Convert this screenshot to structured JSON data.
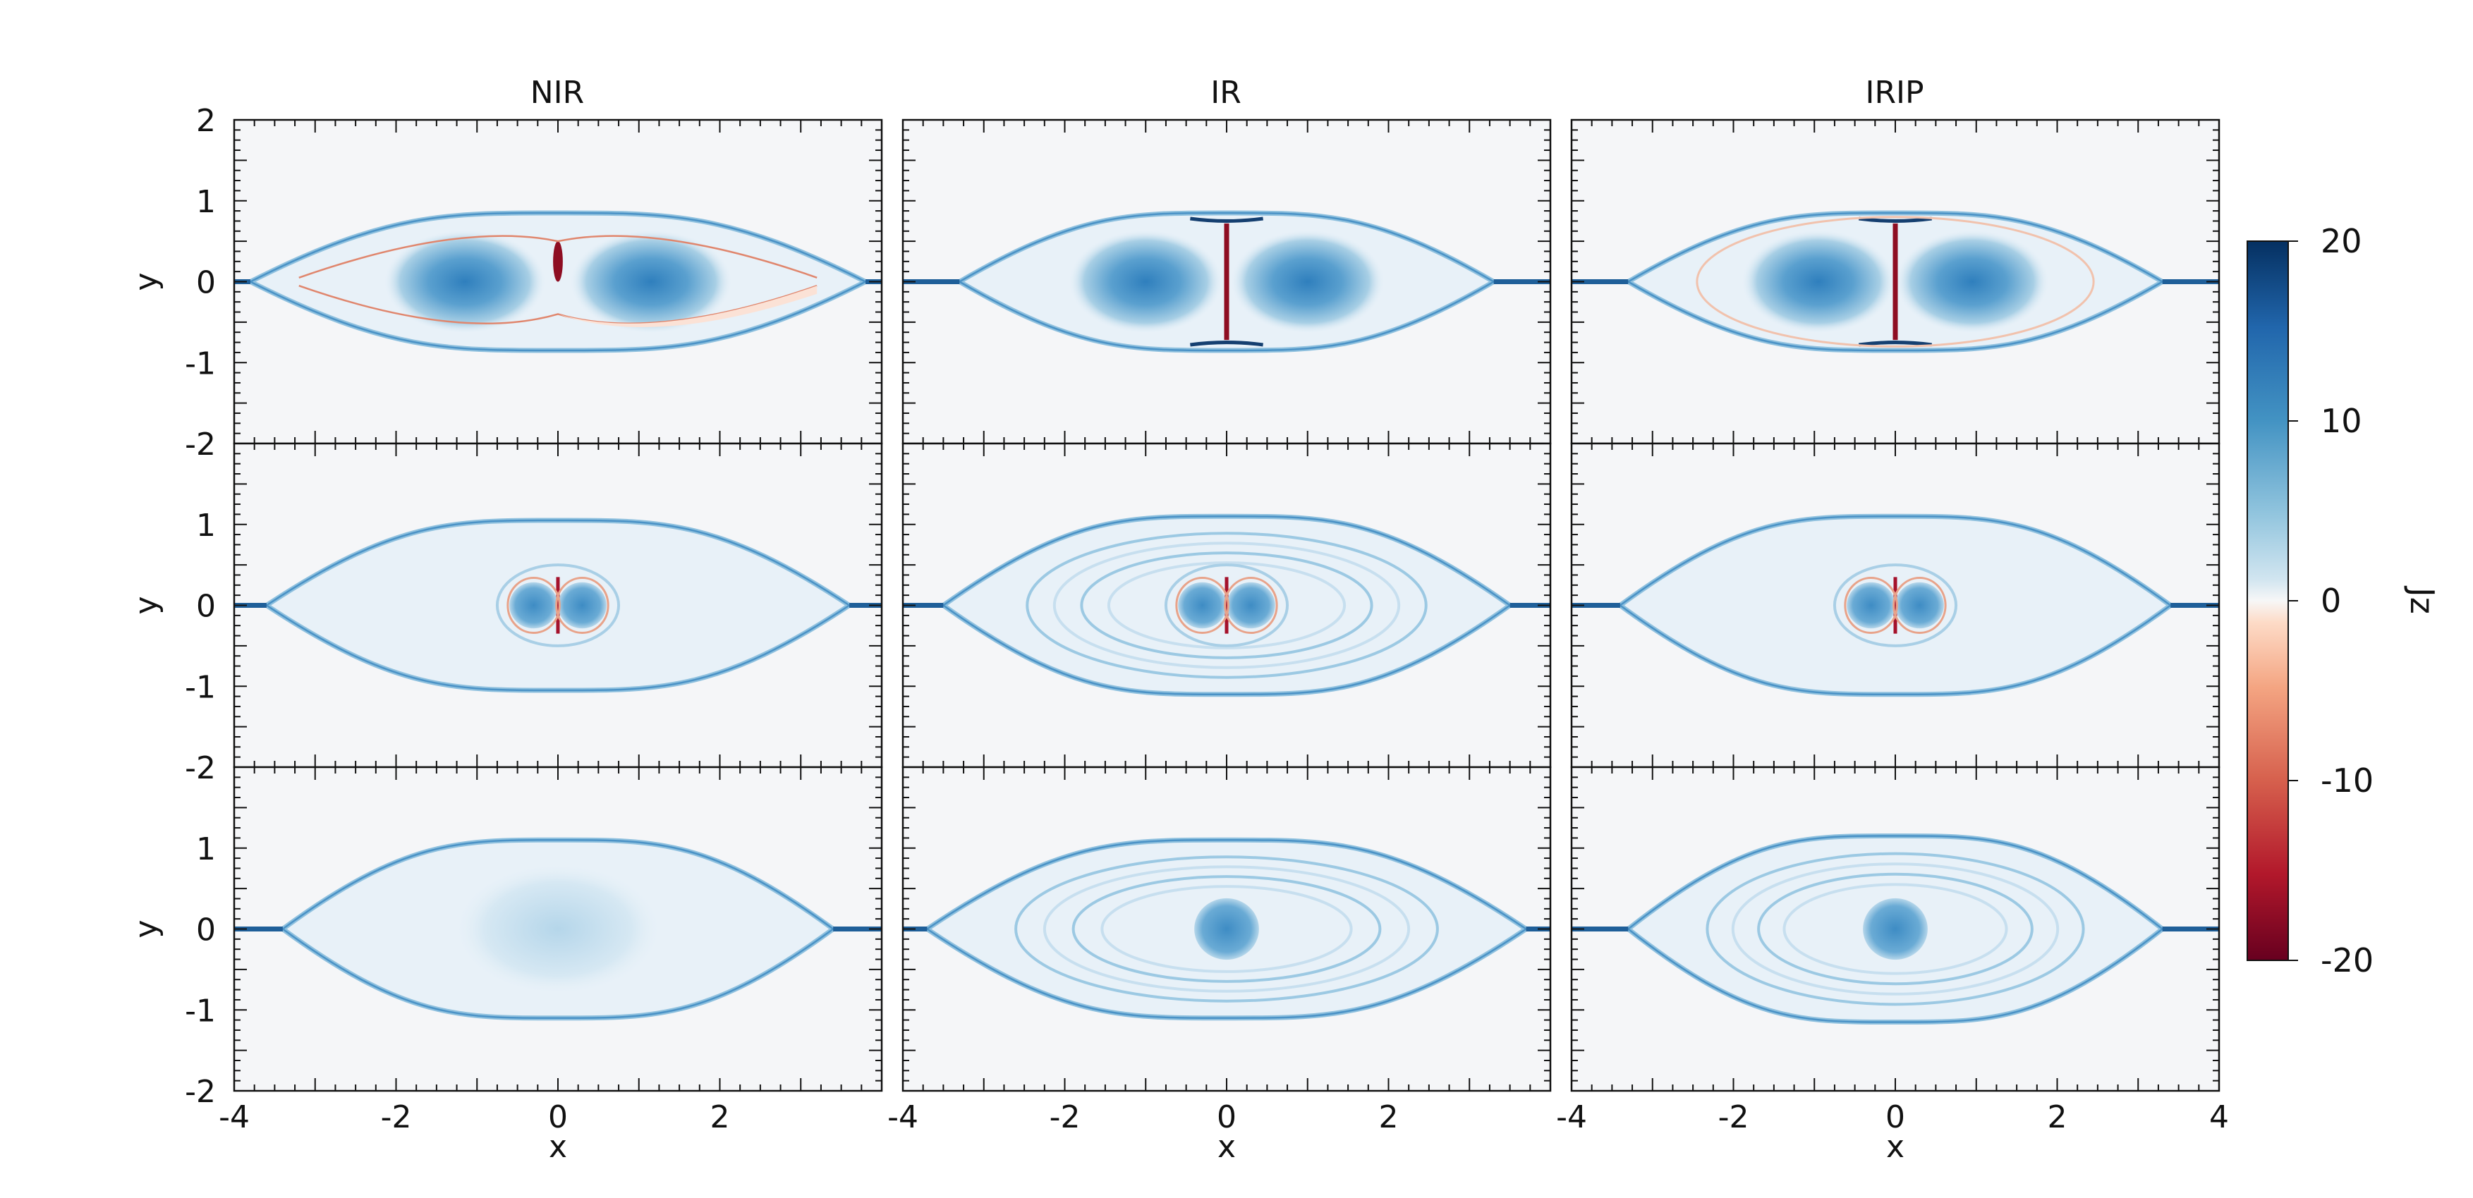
{
  "figure": {
    "columns": [
      "NIR",
      "IR",
      "IRIP"
    ],
    "xlabel": "x",
    "ylabel": "y",
    "x_ticks": [
      "-4",
      "-2",
      "0",
      "2"
    ],
    "x_ticks_last": [
      "-4",
      "-2",
      "0",
      "2",
      "4"
    ],
    "y_ticks": [
      "2",
      "1",
      "0",
      "-1",
      "-2"
    ],
    "y_ticks_inner": [
      "1",
      "0",
      "-1",
      "-2"
    ]
  },
  "colorbar": {
    "label": "Jz",
    "ticks": [
      "20",
      "10",
      "0",
      "-10",
      "-20"
    ],
    "colors": {
      "max": "#053061",
      "mid_high": "#4393c3",
      "zero": "#f7f7f7",
      "mid_low": "#f4a582",
      "min": "#67001f"
    }
  },
  "chart_data": {
    "type": "heatmap",
    "layout": "3x3 panel grid",
    "columns": [
      "NIR",
      "IR",
      "IRIP"
    ],
    "xlabel": "x",
    "ylabel": "y",
    "xlim": [
      -4,
      4
    ],
    "ylim": [
      -2,
      2
    ],
    "colorbar": {
      "label": "Jz",
      "range": [
        -20,
        20
      ],
      "ticks": [
        20,
        10,
        0,
        -10,
        -20
      ],
      "colormap": "RdBu (blue positive, red negative)"
    },
    "panels": [
      {
        "row": 0,
        "col": "NIR",
        "island_half_height": 0.85,
        "x_points": [
          -3.8,
          3.8
        ],
        "cores": [
          {
            "x": -1.15,
            "y": 0
          },
          {
            "x": 1.15,
            "y": 0
          }
        ],
        "core_rx": 1.0,
        "central_sheet": "short negative sheet near x=0"
      },
      {
        "row": 0,
        "col": "IR",
        "island_half_height": 0.85,
        "x_points": [
          -3.3,
          3.3
        ],
        "cores": [
          {
            "x": -1.0,
            "y": 0
          },
          {
            "x": 1.0,
            "y": 0
          }
        ],
        "core_rx": 0.95,
        "central_sheet": "negative sheet spanning y=-0.7 to 0.7"
      },
      {
        "row": 0,
        "col": "IRIP",
        "island_half_height": 0.85,
        "x_points": [
          -3.3,
          3.3
        ],
        "cores": [
          {
            "x": -0.95,
            "y": 0
          },
          {
            "x": 0.95,
            "y": 0
          }
        ],
        "core_rx": 0.95,
        "central_sheet": "negative sheet spanning y=-0.7 to 0.7"
      },
      {
        "row": 1,
        "col": "NIR",
        "island_half_height": 1.05,
        "x_points": [
          -3.6,
          3.6
        ],
        "cores": [
          {
            "x": -0.3,
            "y": 0
          },
          {
            "x": 0.3,
            "y": 0
          }
        ],
        "core_rx": 0.3
      },
      {
        "row": 1,
        "col": "IR",
        "island_half_height": 1.1,
        "x_points": [
          -3.5,
          3.5
        ],
        "cores": [
          {
            "x": -0.3,
            "y": 0
          },
          {
            "x": 0.3,
            "y": 0
          }
        ],
        "core_rx": 0.3,
        "ripples": true
      },
      {
        "row": 1,
        "col": "IRIP",
        "island_half_height": 1.1,
        "x_points": [
          -3.4,
          3.4
        ],
        "cores": [
          {
            "x": -0.3,
            "y": 0
          },
          {
            "x": 0.3,
            "y": 0
          }
        ],
        "core_rx": 0.3
      },
      {
        "row": 2,
        "col": "NIR",
        "island_half_height": 1.1,
        "x_points": [
          -3.4,
          3.4
        ],
        "cores": [
          {
            "x": 0,
            "y": 0
          }
        ],
        "core_rx": 1.3
      },
      {
        "row": 2,
        "col": "IR",
        "island_half_height": 1.1,
        "x_points": [
          -3.7,
          3.7
        ],
        "cores": [
          {
            "x": 0,
            "y": 0
          }
        ],
        "core_rx": 0.4,
        "ripples": true
      },
      {
        "row": 2,
        "col": "IRIP",
        "island_half_height": 1.15,
        "x_points": [
          -3.3,
          3.3
        ],
        "cores": [
          {
            "x": 0,
            "y": 0
          }
        ],
        "core_rx": 0.4,
        "ripples": true
      }
    ]
  }
}
